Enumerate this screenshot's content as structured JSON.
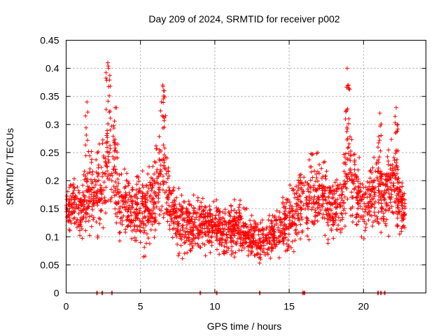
{
  "chart_data": {
    "type": "scatter",
    "title": "Day 209 of 2024, SRMTID for receiver p002",
    "xlabel": "GPS time / hours",
    "ylabel": "SRMTID / TECUs",
    "xlim": [
      0,
      24.2
    ],
    "ylim": [
      0,
      0.45
    ],
    "xticks": [
      "0",
      "5",
      "10",
      "15",
      "20"
    ],
    "xtick_values": [
      0,
      5,
      10,
      15,
      20
    ],
    "yticks": [
      "0",
      "0.05",
      "0.1",
      "0.15",
      "0.2",
      "0.25",
      "0.3",
      "0.35",
      "0.4",
      "0.45"
    ],
    "ytick_values": [
      0,
      0.05,
      0.1,
      0.15,
      0.2,
      0.25,
      0.3,
      0.35,
      0.4,
      0.45
    ],
    "grid": true,
    "marker": "+",
    "color": "#ff0000",
    "zero_points_x": [
      2.05,
      2.4,
      3.05,
      9.0,
      10.1,
      13.0,
      15.9,
      16.0,
      20.95,
      21.15,
      21.4
    ],
    "series_envelope": {
      "x": [
        0,
        0.5,
        1,
        1.3,
        1.6,
        2.0,
        2.5,
        2.8,
        3.2,
        3.6,
        4.0,
        4.5,
        5.0,
        5.5,
        6.0,
        6.3,
        6.6,
        7.0,
        7.5,
        8.0,
        8.5,
        9.0,
        9.5,
        10.0,
        10.5,
        11.0,
        11.5,
        12.0,
        12.5,
        13.0,
        13.5,
        14.0,
        14.5,
        15.0,
        15.5,
        16.0,
        16.5,
        17.0,
        17.5,
        18.0,
        18.5,
        19.0,
        19.3,
        19.6,
        20.0,
        20.5,
        21.0,
        21.5,
        22.0,
        22.5,
        22.8
      ],
      "low": [
        0.09,
        0.1,
        0.08,
        0.08,
        0.08,
        0.07,
        0.08,
        0.09,
        0.1,
        0.07,
        0.08,
        0.08,
        0.05,
        0.06,
        0.07,
        0.08,
        0.09,
        0.08,
        0.05,
        0.06,
        0.06,
        0.06,
        0.06,
        0.06,
        0.05,
        0.05,
        0.04,
        0.05,
        0.05,
        0.04,
        0.05,
        0.05,
        0.05,
        0.05,
        0.06,
        0.07,
        0.08,
        0.08,
        0.08,
        0.07,
        0.07,
        0.08,
        0.08,
        0.09,
        0.09,
        0.09,
        0.08,
        0.08,
        0.09,
        0.08,
        0.07
      ],
      "high": [
        0.2,
        0.22,
        0.2,
        0.24,
        0.3,
        0.26,
        0.34,
        0.38,
        0.33,
        0.24,
        0.22,
        0.22,
        0.22,
        0.24,
        0.26,
        0.34,
        0.33,
        0.22,
        0.2,
        0.18,
        0.18,
        0.2,
        0.17,
        0.18,
        0.16,
        0.17,
        0.18,
        0.17,
        0.14,
        0.13,
        0.14,
        0.16,
        0.18,
        0.2,
        0.22,
        0.24,
        0.26,
        0.25,
        0.24,
        0.22,
        0.24,
        0.36,
        0.3,
        0.26,
        0.22,
        0.24,
        0.3,
        0.26,
        0.3,
        0.22,
        0.2
      ],
      "peaks": [
        [
          1.4,
          0.34
        ],
        [
          2.8,
          0.41
        ],
        [
          2.85,
          0.4
        ],
        [
          3.3,
          0.33
        ],
        [
          6.5,
          0.37
        ],
        [
          6.6,
          0.36
        ],
        [
          18.9,
          0.4
        ],
        [
          19.0,
          0.37
        ],
        [
          21.1,
          0.32
        ],
        [
          22.2,
          0.33
        ],
        [
          22.3,
          0.3
        ]
      ]
    }
  }
}
